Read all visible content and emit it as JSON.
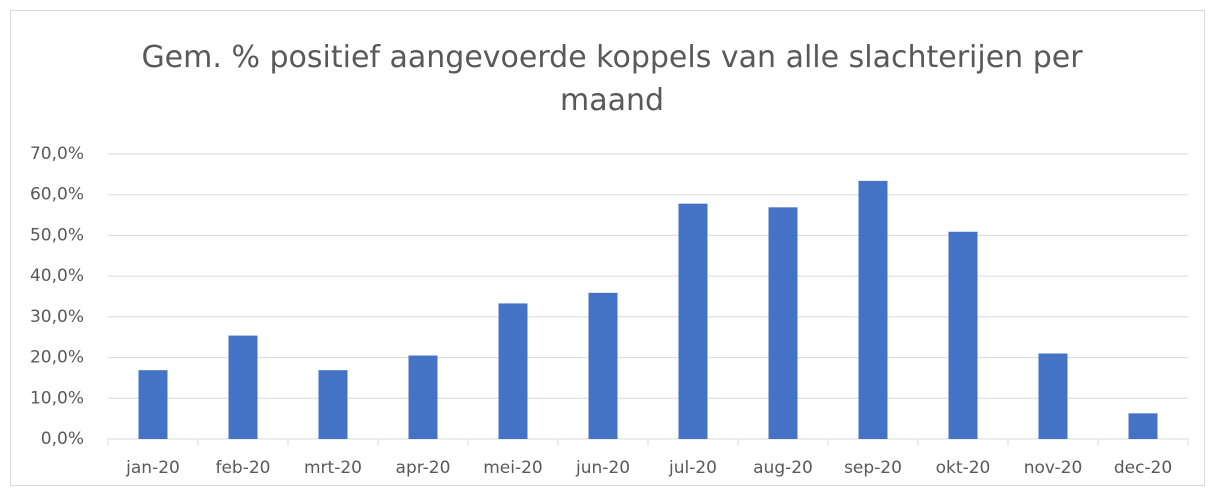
{
  "chart_data": {
    "type": "bar",
    "title": "Gem. % positief aangevoerde koppels van alle slachterijen per maand",
    "categories": [
      "jan-20",
      "feb-20",
      "mrt-20",
      "apr-20",
      "mei-20",
      "jun-20",
      "jul-20",
      "aug-20",
      "sep-20",
      "okt-20",
      "nov-20",
      "dec-20"
    ],
    "values": [
      16.9,
      25.4,
      16.9,
      20.5,
      33.3,
      35.9,
      57.8,
      56.9,
      63.4,
      50.9,
      21.0,
      6.3
    ],
    "color": "#4472c4",
    "ylim": [
      0,
      70
    ],
    "yticks": [
      {
        "value": 0,
        "label": "0,0%"
      },
      {
        "value": 10,
        "label": "10,0%"
      },
      {
        "value": 20,
        "label": "20,0%"
      },
      {
        "value": 30,
        "label": "30,0%"
      },
      {
        "value": 40,
        "label": "40,0%"
      },
      {
        "value": 50,
        "label": "50,0%"
      },
      {
        "value": 60,
        "label": "60,0%"
      },
      {
        "value": 70,
        "label": "70,0%"
      }
    ],
    "grid": true
  }
}
